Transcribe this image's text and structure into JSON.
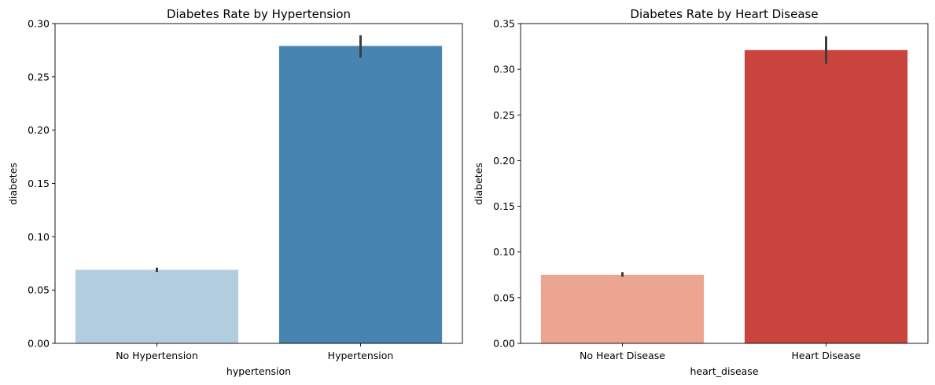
{
  "chart_data": [
    {
      "type": "bar",
      "title": "Diabetes Rate by Hypertension",
      "xlabel": "hypertension",
      "ylabel": "diabetes",
      "categories": [
        "No Hypertension",
        "Hypertension"
      ],
      "values": [
        0.069,
        0.279
      ],
      "errors": [
        [
          0.067,
          0.071
        ],
        [
          0.268,
          0.289
        ]
      ],
      "colors": [
        "#b3cde0",
        "#4884b1"
      ],
      "ylim": [
        0,
        0.3
      ],
      "yticks": [
        "0.00",
        "0.05",
        "0.10",
        "0.15",
        "0.20",
        "0.25",
        "0.30"
      ],
      "grid": false
    },
    {
      "type": "bar",
      "title": "Diabetes Rate by Heart Disease",
      "xlabel": "heart_disease",
      "ylabel": "diabetes",
      "categories": [
        "No Heart Disease",
        "Heart Disease"
      ],
      "values": [
        0.075,
        0.321
      ],
      "errors": [
        [
          0.073,
          0.078
        ],
        [
          0.306,
          0.336
        ]
      ],
      "colors": [
        "#eca590",
        "#c9443d"
      ],
      "ylim": [
        0,
        0.35
      ],
      "yticks": [
        "0.00",
        "0.05",
        "0.10",
        "0.15",
        "0.20",
        "0.25",
        "0.30",
        "0.35"
      ],
      "grid": false
    }
  ]
}
